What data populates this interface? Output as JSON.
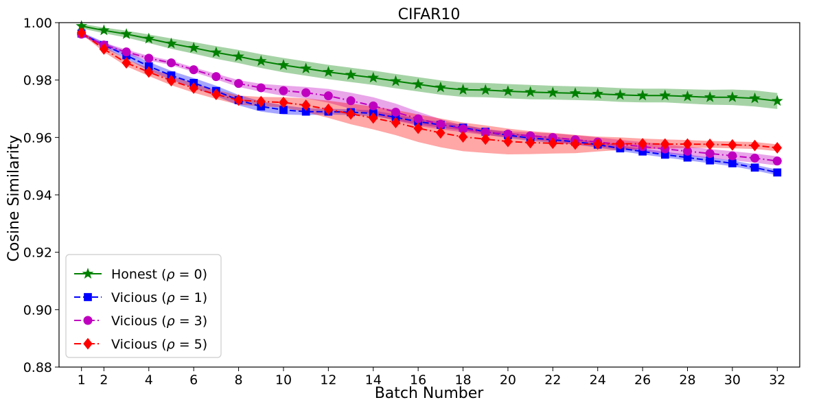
{
  "chart_data": {
    "type": "line",
    "title": "CIFAR10",
    "xlabel": "Batch Number",
    "ylabel": "Cosine Similarity",
    "xlim": [
      0,
      33
    ],
    "ylim": [
      0.88,
      1.0
    ],
    "xticks": [
      1,
      2,
      4,
      6,
      8,
      10,
      12,
      14,
      16,
      18,
      20,
      22,
      24,
      26,
      28,
      30,
      32
    ],
    "xtick_labels": [
      "1",
      "2",
      "4",
      "6",
      "8",
      "10",
      "12",
      "14",
      "16",
      "18",
      "20",
      "22",
      "24",
      "26",
      "28",
      "30",
      "32"
    ],
    "yticks": [
      0.88,
      0.9,
      0.92,
      0.94,
      0.96,
      0.98,
      1.0
    ],
    "ytick_labels": [
      "0.88",
      "0.90",
      "0.92",
      "0.94",
      "0.96",
      "0.98",
      "1.00"
    ],
    "grid": false,
    "legend_position": "lower-left",
    "x": [
      1,
      2,
      3,
      4,
      5,
      6,
      7,
      8,
      9,
      10,
      11,
      12,
      13,
      14,
      15,
      16,
      17,
      18,
      19,
      20,
      21,
      22,
      23,
      24,
      25,
      26,
      27,
      28,
      29,
      30,
      31,
      32
    ],
    "series": [
      {
        "name": "Honest (ρ = 0)",
        "legend_prefix": "Honest (",
        "legend_symbol": "ρ",
        "legend_suffix": " = 0)",
        "color": "#008000",
        "marker": "star",
        "linestyle": "solid",
        "values": [
          0.9988,
          0.9973,
          0.996,
          0.9944,
          0.9927,
          0.9912,
          0.9896,
          0.9882,
          0.9866,
          0.9852,
          0.984,
          0.9828,
          0.9818,
          0.9808,
          0.9796,
          0.9785,
          0.9774,
          0.9766,
          0.9765,
          0.9761,
          0.9758,
          0.9756,
          0.9754,
          0.9752,
          0.9748,
          0.9746,
          0.9746,
          0.9743,
          0.974,
          0.974,
          0.9736,
          0.9727
        ],
        "band": [
          0.0008,
          0.001,
          0.0012,
          0.0015,
          0.0018,
          0.002,
          0.0022,
          0.0023,
          0.0024,
          0.0025,
          0.0025,
          0.0025,
          0.0025,
          0.0025,
          0.0025,
          0.0025,
          0.0025,
          0.0025,
          0.0025,
          0.0025,
          0.0025,
          0.0024,
          0.0024,
          0.0024,
          0.0024,
          0.0024,
          0.0024,
          0.0025,
          0.0026,
          0.0027,
          0.0028,
          0.0028
        ]
      },
      {
        "name": "Vicious (ρ = 1)",
        "legend_prefix": "Vicious (",
        "legend_symbol": "ρ",
        "legend_suffix": " = 1)",
        "color": "#0000ff",
        "marker": "square",
        "linestyle": "dashed",
        "values": [
          0.9962,
          0.9922,
          0.9886,
          0.9848,
          0.9816,
          0.979,
          0.9762,
          0.973,
          0.9708,
          0.9696,
          0.969,
          0.969,
          0.9688,
          0.9684,
          0.967,
          0.9655,
          0.9644,
          0.9634,
          0.962,
          0.9608,
          0.9598,
          0.9592,
          0.9585,
          0.9575,
          0.9562,
          0.9551,
          0.954,
          0.953,
          0.952,
          0.951,
          0.9495,
          0.9478
        ],
        "band": [
          0.0005,
          0.001,
          0.0012,
          0.0015,
          0.0016,
          0.0017,
          0.0018,
          0.0018,
          0.0018,
          0.0016,
          0.0012,
          0.001,
          0.001,
          0.001,
          0.001,
          0.001,
          0.001,
          0.001,
          0.001,
          0.001,
          0.001,
          0.001,
          0.001,
          0.001,
          0.001,
          0.001,
          0.001,
          0.001,
          0.001,
          0.001,
          0.001,
          0.001
        ]
      },
      {
        "name": "Vicious (ρ = 3)",
        "legend_prefix": "Vicious (",
        "legend_symbol": "ρ",
        "legend_suffix": " = 3)",
        "color": "#bf00bf",
        "marker": "circle",
        "linestyle": "dashdot",
        "values": [
          0.996,
          0.9922,
          0.9898,
          0.9876,
          0.986,
          0.9836,
          0.9812,
          0.9788,
          0.9773,
          0.9763,
          0.9756,
          0.9745,
          0.9728,
          0.971,
          0.9688,
          0.9665,
          0.9646,
          0.963,
          0.9618,
          0.9612,
          0.9606,
          0.96,
          0.9592,
          0.9584,
          0.9576,
          0.9568,
          0.956,
          0.9552,
          0.9544,
          0.9536,
          0.9528,
          0.9518
        ],
        "band": [
          0.0005,
          0.0008,
          0.0008,
          0.0008,
          0.0008,
          0.0008,
          0.001,
          0.0012,
          0.0014,
          0.0018,
          0.002,
          0.0024,
          0.0028,
          0.003,
          0.003,
          0.0025,
          0.0018,
          0.0012,
          0.001,
          0.001,
          0.0012,
          0.0014,
          0.0016,
          0.0016,
          0.0016,
          0.0016,
          0.0016,
          0.0016,
          0.0016,
          0.0016,
          0.0016,
          0.0016
        ]
      },
      {
        "name": "Vicious (ρ = 5)",
        "legend_prefix": "Vicious (",
        "legend_symbol": "ρ",
        "legend_suffix": " = 5)",
        "color": "#ff0000",
        "marker": "diamond",
        "linestyle": "dashdot",
        "values": [
          0.9965,
          0.9908,
          0.986,
          0.9828,
          0.9798,
          0.9772,
          0.975,
          0.973,
          0.9725,
          0.9722,
          0.9712,
          0.9698,
          0.9682,
          0.9668,
          0.9652,
          0.9632,
          0.9616,
          0.9602,
          0.9594,
          0.9586,
          0.9582,
          0.958,
          0.9577,
          0.9577,
          0.9578,
          0.9578,
          0.9577,
          0.9577,
          0.9576,
          0.9574,
          0.9572,
          0.9564
        ],
        "band": [
          0.0005,
          0.001,
          0.0012,
          0.0014,
          0.0016,
          0.0016,
          0.0016,
          0.0016,
          0.0016,
          0.0018,
          0.0024,
          0.003,
          0.0036,
          0.004,
          0.0044,
          0.0048,
          0.005,
          0.005,
          0.0048,
          0.0045,
          0.004,
          0.0036,
          0.0032,
          0.0026,
          0.0022,
          0.0018,
          0.0016,
          0.0014,
          0.0012,
          0.0012,
          0.0012,
          0.0012
        ]
      }
    ]
  }
}
